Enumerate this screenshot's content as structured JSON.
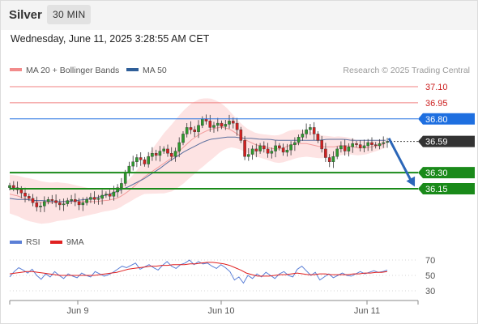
{
  "header": {
    "symbol": "Silver",
    "timeframe": "30 MIN",
    "datetime": "Wednesday, June 11, 2025 3:28:55 AM CET"
  },
  "legend": {
    "items": [
      {
        "label": "MA 20 + Bollinger Bands",
        "color": "#f28b8b"
      },
      {
        "label": "MA 50",
        "color": "#2f5f99"
      }
    ],
    "credit": "Research © 2025 Trading Central"
  },
  "chart_data": [
    {
      "type": "candlestick",
      "title": "",
      "ylim": [
        35.7,
        37.2
      ],
      "x_ticks": [
        "Jun 9",
        "Jun 10",
        "Jun 11"
      ],
      "current_price": 36.59,
      "levels": [
        {
          "value": 37.1,
          "label": "37.10",
          "role": "resistance",
          "color": "#f08080"
        },
        {
          "value": 36.95,
          "label": "36.95",
          "role": "resistance",
          "color": "#f08080"
        },
        {
          "value": 36.8,
          "label": "36.80",
          "role": "pivot",
          "color": "#1e6fe0"
        },
        {
          "value": 36.3,
          "label": "36.30",
          "role": "support",
          "color": "#1a8a1a"
        },
        {
          "value": 36.15,
          "label": "36.15",
          "role": "support",
          "color": "#1a8a1a"
        }
      ],
      "closes": [
        36.18,
        36.16,
        36.14,
        36.11,
        36.08,
        36.06,
        36.02,
        35.98,
        35.99,
        36.03,
        36.05,
        36.04,
        36.02,
        36.0,
        36.01,
        36.04,
        36.05,
        36.03,
        36.0,
        36.02,
        36.05,
        36.07,
        36.05,
        36.06,
        36.09,
        36.1,
        36.08,
        36.12,
        36.16,
        36.2,
        36.3,
        36.36,
        36.4,
        36.44,
        36.42,
        36.38,
        36.45,
        36.48,
        36.46,
        36.5,
        36.52,
        36.48,
        36.45,
        36.5,
        36.58,
        36.66,
        36.72,
        36.7,
        36.68,
        36.74,
        36.8,
        36.78,
        36.72,
        36.74,
        36.76,
        36.73,
        36.75,
        36.78,
        36.76,
        36.7,
        36.6,
        36.45,
        36.47,
        36.52,
        36.5,
        36.55,
        36.52,
        36.48,
        36.5,
        36.55,
        36.53,
        36.49,
        36.51,
        36.56,
        36.58,
        36.63,
        36.66,
        36.7,
        36.72,
        36.66,
        36.6,
        36.52,
        36.44,
        36.4,
        36.45,
        36.52,
        36.55,
        36.5,
        36.54,
        36.57,
        36.56,
        36.53,
        36.55,
        36.58,
        36.56,
        36.55,
        36.57,
        36.58,
        36.59
      ],
      "bollinger_basis": [
        36.1,
        36.09,
        36.08,
        36.06,
        36.05,
        36.04,
        36.03,
        36.02,
        36.02,
        36.02,
        36.03,
        36.03,
        36.03,
        36.03,
        36.03,
        36.03,
        36.03,
        36.03,
        36.03,
        36.03,
        36.04,
        36.04,
        36.05,
        36.06,
        36.08,
        36.11,
        36.14,
        36.18,
        36.22,
        36.26,
        36.29,
        36.32,
        36.35,
        36.38,
        36.41,
        36.44,
        36.48,
        36.52,
        36.56,
        36.6,
        36.63,
        36.66,
        36.68,
        36.7,
        36.71,
        36.72,
        36.72,
        36.71,
        36.69,
        36.66,
        36.63,
        36.6,
        36.58,
        36.56,
        36.55,
        36.54,
        36.53,
        36.52,
        36.52,
        36.53,
        36.55,
        36.56,
        36.57,
        36.57,
        36.57,
        36.56,
        36.55,
        36.54,
        36.54,
        36.54,
        36.54,
        36.55,
        36.55,
        36.55,
        36.54,
        36.53,
        36.53,
        36.53,
        36.54,
        36.55,
        36.56,
        36.57
      ],
      "bollinger_width": [
        0.18,
        0.19,
        0.2,
        0.2,
        0.19,
        0.18,
        0.17,
        0.15,
        0.13,
        0.11,
        0.1,
        0.1,
        0.1,
        0.12,
        0.16,
        0.22,
        0.28,
        0.32,
        0.34,
        0.34,
        0.32,
        0.28,
        0.22,
        0.16,
        0.12,
        0.11,
        0.11,
        0.12,
        0.13,
        0.14,
        0.13,
        0.12,
        0.11,
        0.1,
        0.09,
        0.08,
        0.07,
        0.06,
        0.05,
        0.04
      ],
      "ma50": [
        36.06,
        36.05,
        36.05,
        36.04,
        36.04,
        36.03,
        36.03,
        36.03,
        36.04,
        36.05,
        36.06,
        36.08,
        36.1,
        36.13,
        36.16,
        36.2,
        36.24,
        36.29,
        36.34,
        36.4,
        36.45,
        36.5,
        36.54,
        36.58,
        36.61,
        36.62,
        36.63,
        36.63,
        36.62,
        36.62,
        36.61,
        36.61,
        36.6,
        36.6,
        36.6,
        36.6,
        36.6,
        36.6,
        36.61,
        36.61,
        36.61,
        36.6,
        36.6,
        36.6,
        36.6,
        36.6
      ]
    },
    {
      "type": "line",
      "title": "",
      "ylim": [
        20,
        80
      ],
      "yticks": [
        70,
        50,
        30
      ],
      "series": [
        {
          "name": "RSI",
          "color": "#5b7fd6",
          "values": [
            48,
            55,
            60,
            57,
            53,
            58,
            50,
            45,
            52,
            48,
            55,
            50,
            46,
            52,
            49,
            47,
            53,
            50,
            48,
            55,
            52,
            49,
            51,
            54,
            58,
            62,
            60,
            63,
            66,
            58,
            61,
            64,
            60,
            57,
            63,
            68,
            62,
            59,
            64,
            66,
            70,
            64,
            68,
            65,
            66,
            62,
            59,
            64,
            60,
            55,
            44,
            48,
            40,
            50,
            46,
            52,
            48,
            54,
            50,
            46,
            52,
            55,
            50,
            48,
            58,
            62,
            56,
            50,
            54,
            44,
            48,
            52,
            47,
            50,
            53,
            50,
            49,
            52,
            55,
            52,
            54,
            56,
            54,
            55,
            57
          ]
        },
        {
          "name": "9MA",
          "color": "#e02020",
          "values": [
            52,
            53,
            54,
            55,
            55,
            54,
            53,
            52,
            51,
            50,
            50,
            50,
            50,
            50,
            50,
            50,
            51,
            52,
            53,
            54,
            56,
            58,
            59,
            60,
            61,
            62,
            62,
            63,
            63,
            64,
            64,
            64,
            65,
            65,
            66,
            67,
            67,
            66,
            65,
            63,
            60,
            57,
            53,
            51,
            49,
            49,
            49,
            50,
            51,
            51,
            52,
            53,
            52,
            51,
            51,
            52,
            52,
            51,
            51,
            51,
            51,
            52,
            52,
            53,
            53,
            54,
            54,
            55
          ]
        }
      ]
    }
  ]
}
